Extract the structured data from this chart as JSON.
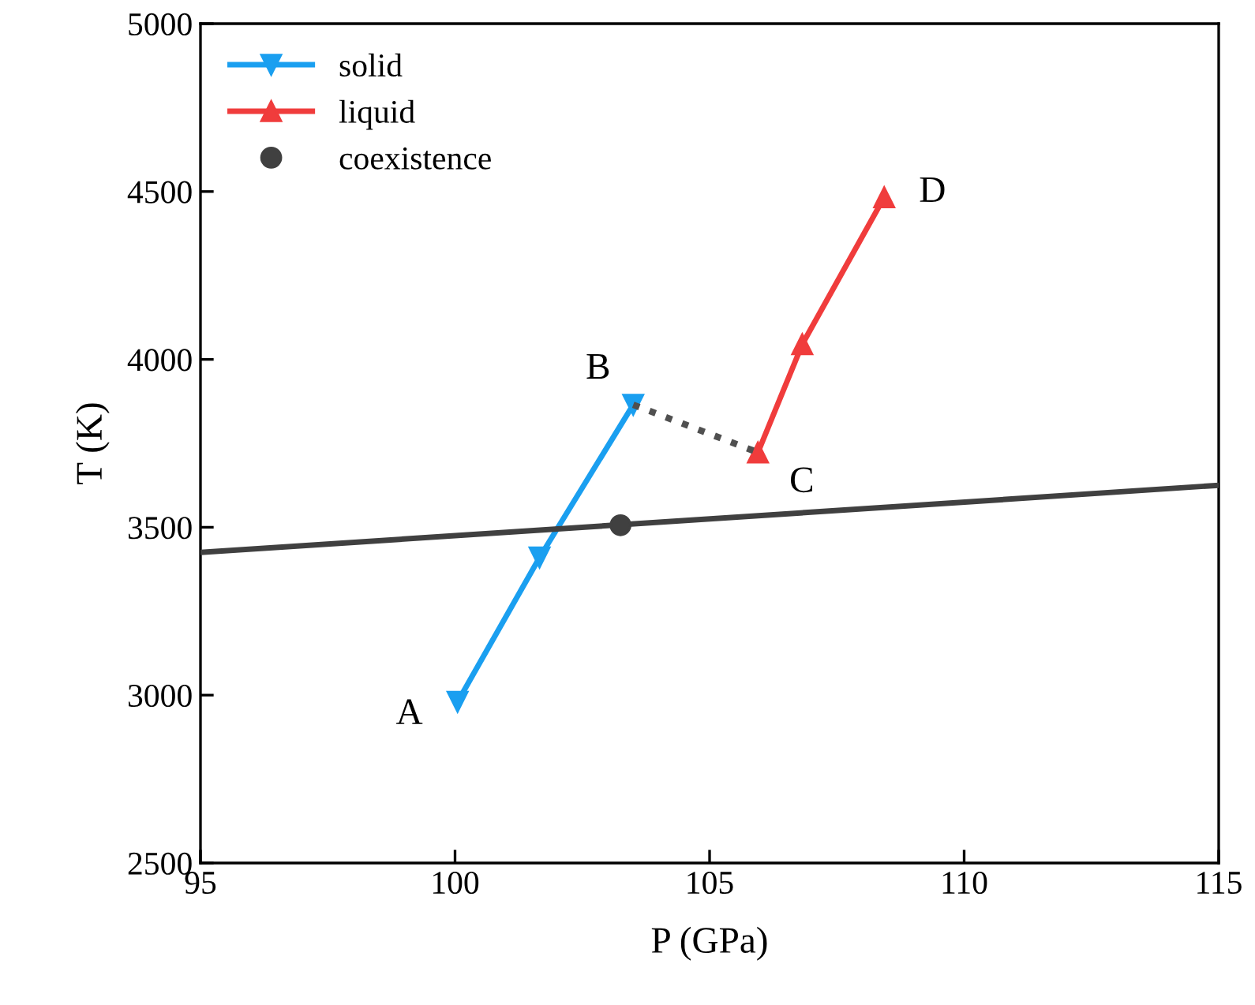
{
  "chart_data": {
    "type": "line",
    "xlabel": "P (GPa)",
    "ylabel": "T (K)",
    "xlim": [
      95,
      115
    ],
    "xticks": [
      95,
      100,
      105,
      110,
      115
    ],
    "ylim": [
      2500,
      5000
    ],
    "yticks": [
      2500,
      3000,
      3500,
      4000,
      4500,
      5000
    ],
    "grid": false,
    "legend": "top left",
    "series": [
      {
        "name": "solid",
        "color": "#1a9ff0",
        "marker": "triangle_down",
        "x": [
          100.05,
          101.66,
          103.5
        ],
        "values": [
          2980,
          3410,
          3865
        ]
      },
      {
        "name": "liquid",
        "color": "#f03c3c",
        "marker": "triangle",
        "x": [
          105.95,
          106.82,
          108.43
        ],
        "values": [
          3723,
          4045,
          4483
        ]
      },
      {
        "name": "coexistence",
        "color": "#404040",
        "type": "scatter",
        "marker": "circle",
        "x": [
          103.25
        ],
        "values": [
          3506
        ]
      },
      {
        "color": "#404040",
        "line_style": "solid",
        "x": [
          95,
          115
        ],
        "values": [
          3425,
          3625
        ]
      },
      {
        "color": "#505050",
        "line_style": "dotted",
        "x": [
          103.5,
          105.95
        ],
        "values": [
          3865,
          3723
        ]
      }
    ],
    "annotations": [
      {
        "text": "A",
        "x": 100.05,
        "y": 2980
      },
      {
        "text": "B",
        "x": 103.5,
        "y": 3865
      },
      {
        "text": "C",
        "x": 105.95,
        "y": 3723
      },
      {
        "text": "D",
        "x": 108.43,
        "y": 4483
      }
    ]
  }
}
